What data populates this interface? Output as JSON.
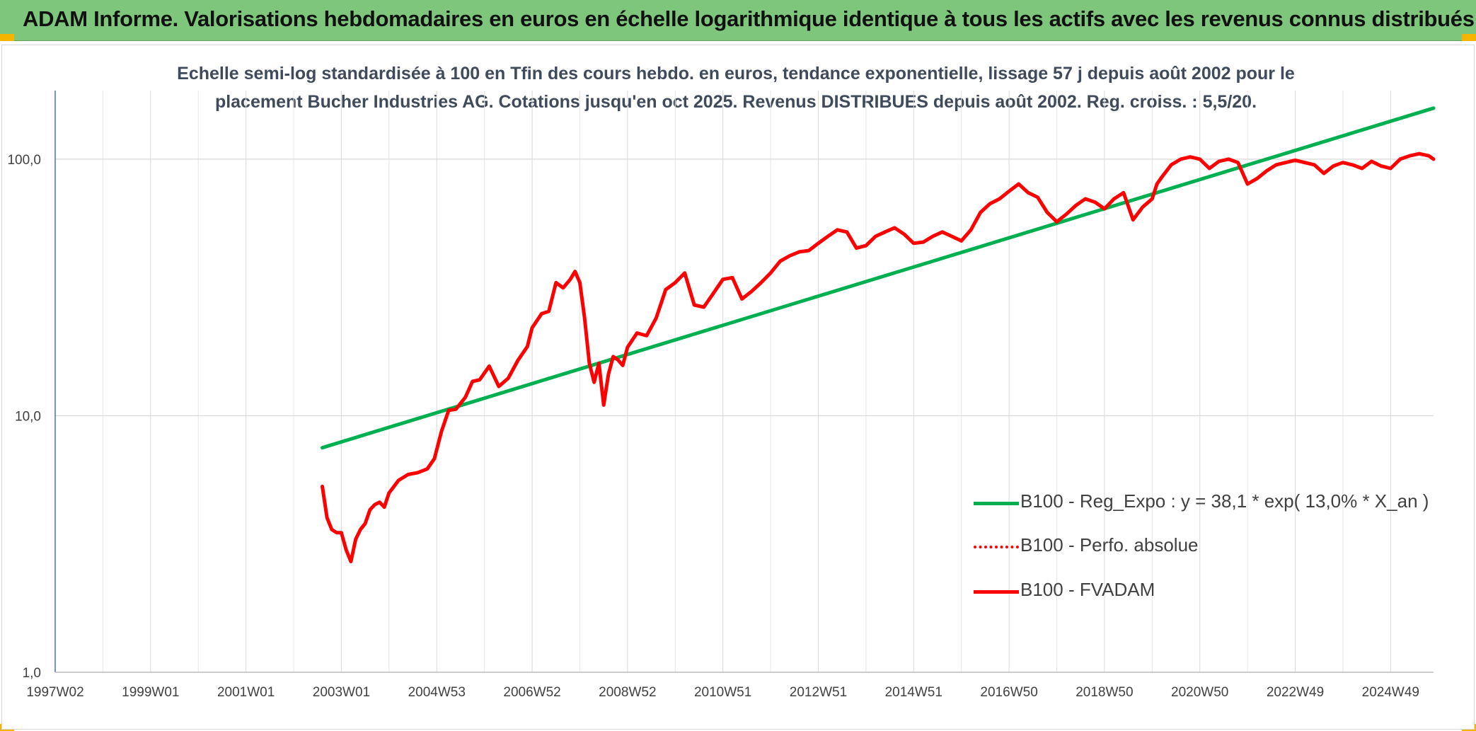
{
  "header": {
    "title": "ADAM Informe. Valorisations hebdomadaires en euros en échelle logarithmique identique à tous les actifs avec les revenus connus distribués"
  },
  "colors": {
    "header_bg": "#7dc67b",
    "regression": "#00b050",
    "fvadam": "#ff0000",
    "perf": "#ff0000",
    "accent": "#f4b400"
  },
  "chart_data": {
    "type": "line",
    "title_line1": "Echelle semi-log standardisée à 100 en Tfin des cours hebdo. en euros, tendance exponentielle, lissage 57 j depuis août 2002 pour le",
    "title_line2": "placement Bucher Industries AG. Cotations jusqu'en oct 2025. Revenus DISTRIBUES depuis août 2002. Reg. croiss. : 5,5/20.",
    "y_scale": "log",
    "ylim": [
      1,
      185
    ],
    "xlim": [
      1997.0,
      2025.9
    ],
    "y_tick_values": [
      1,
      10,
      100
    ],
    "y_tick_labels": [
      "1,0",
      "10,0",
      "100,0"
    ],
    "x_tick_values": [
      1997.0,
      1999.0,
      2001.0,
      2003.0,
      2005.0,
      2007.0,
      2009.0,
      2011.0,
      2013.0,
      2015.0,
      2017.0,
      2019.0,
      2021.0,
      2023.0,
      2025.0
    ],
    "x_tick_labels": [
      "1997W02",
      "1999W01",
      "2001W01",
      "2003W01",
      "2004W53",
      "2006W52",
      "2008W52",
      "2010W51",
      "2012W51",
      "2014W51",
      "2016W50",
      "2018W50",
      "2020W50",
      "2022W49",
      "2024W49"
    ],
    "grid": true,
    "legend_position": "right",
    "series": [
      {
        "name": "B100 - Reg_Expo : y = 38,1 * exp( 13,0% *  X_an )",
        "style": "solid-green",
        "x": [
          2002.6,
          2025.9
        ],
        "values": [
          7.5,
          158
        ]
      },
      {
        "name": "B100 - Perfo. absolue",
        "style": "dotted-red",
        "x": [],
        "values": []
      },
      {
        "name": "B100 - FVADAM",
        "style": "solid-red",
        "x": [
          2002.6,
          2002.7,
          2002.8,
          2002.9,
          2003.0,
          2003.1,
          2003.2,
          2003.3,
          2003.4,
          2003.5,
          2003.6,
          2003.7,
          2003.8,
          2003.9,
          2004.0,
          2004.2,
          2004.4,
          2004.6,
          2004.8,
          2004.95,
          2005.1,
          2005.25,
          2005.4,
          2005.6,
          2005.75,
          2005.9,
          2006.1,
          2006.3,
          2006.5,
          2006.7,
          2006.9,
          2007.0,
          2007.2,
          2007.35,
          2007.5,
          2007.65,
          2007.8,
          2007.9,
          2008.0,
          2008.1,
          2008.2,
          2008.3,
          2008.4,
          2008.5,
          2008.6,
          2008.7,
          2008.8,
          2008.9,
          2009.0,
          2009.2,
          2009.4,
          2009.6,
          2009.8,
          2010.0,
          2010.2,
          2010.4,
          2010.6,
          2010.8,
          2011.0,
          2011.2,
          2011.4,
          2011.6,
          2011.8,
          2012.0,
          2012.2,
          2012.4,
          2012.6,
          2012.8,
          2013.0,
          2013.2,
          2013.4,
          2013.6,
          2013.8,
          2014.0,
          2014.2,
          2014.4,
          2014.6,
          2014.8,
          2015.0,
          2015.2,
          2015.4,
          2015.6,
          2015.8,
          2016.0,
          2016.2,
          2016.4,
          2016.6,
          2016.8,
          2017.0,
          2017.2,
          2017.4,
          2017.6,
          2017.8,
          2018.0,
          2018.2,
          2018.4,
          2018.6,
          2018.8,
          2019.0,
          2019.2,
          2019.4,
          2019.6,
          2019.8,
          2020.0,
          2020.1,
          2020.2,
          2020.4,
          2020.6,
          2020.8,
          2021.0,
          2021.2,
          2021.4,
          2021.6,
          2021.8,
          2022.0,
          2022.2,
          2022.4,
          2022.6,
          2022.8,
          2023.0,
          2023.2,
          2023.4,
          2023.6,
          2023.8,
          2024.0,
          2024.2,
          2024.4,
          2024.6,
          2024.8,
          2025.0,
          2025.2,
          2025.4,
          2025.6,
          2025.8,
          2025.9
        ],
        "values": [
          5.3,
          4.0,
          3.6,
          3.5,
          3.5,
          3.0,
          2.7,
          3.3,
          3.6,
          3.8,
          4.3,
          4.5,
          4.6,
          4.4,
          5.0,
          5.6,
          5.9,
          6.0,
          6.2,
          6.8,
          8.7,
          10.5,
          10.6,
          11.8,
          13.6,
          13.8,
          15.6,
          13.0,
          14.0,
          16.4,
          18.6,
          22.0,
          25.0,
          25.5,
          33.0,
          31.5,
          34.0,
          36.5,
          33.0,
          24.0,
          16.0,
          13.5,
          16.0,
          11.0,
          14.5,
          17.0,
          16.5,
          15.7,
          18.5,
          21.0,
          20.5,
          24.0,
          31.0,
          33.0,
          36.0,
          27.0,
          26.5,
          30.0,
          34.0,
          34.5,
          28.5,
          30.5,
          33.0,
          36.0,
          40.0,
          42.0,
          43.5,
          44.0,
          47.0,
          50.0,
          53.0,
          52.0,
          45.0,
          46.0,
          50.0,
          52.0,
          54.0,
          51.0,
          47.0,
          47.5,
          50.0,
          52.0,
          50.0,
          48.0,
          53.0,
          62.0,
          67.0,
          70.0,
          75.0,
          80.0,
          74.0,
          71.0,
          62.0,
          57.0,
          61.0,
          66.0,
          70.0,
          68.0,
          64.0,
          70.0,
          74.0,
          58.0,
          65.0,
          70.0,
          80.0,
          85.0,
          95.0,
          100.0,
          102.0,
          100.0,
          92.0,
          98.0,
          100.0,
          97.0,
          80.0,
          84.0,
          90.0,
          95.0,
          97.0,
          99.0,
          97.0,
          95.0,
          88.0,
          94.0,
          97.0,
          95.0,
          92.0,
          98.0,
          94.0,
          92.0,
          100.0,
          103.0,
          105.0,
          103.0,
          100.0
        ]
      }
    ]
  }
}
